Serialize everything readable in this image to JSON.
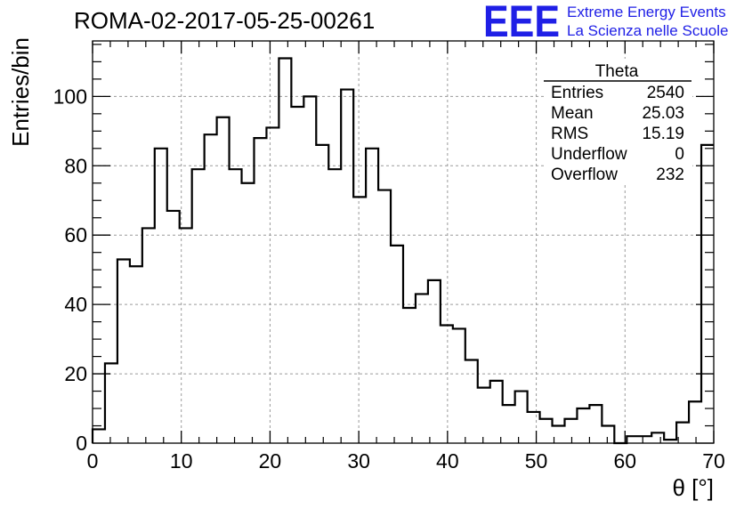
{
  "header": {
    "run_title": "ROMA-02-2017-05-25-00261",
    "logo_text": "EEE",
    "logo_line1": "Extreme Energy Events",
    "logo_line2": "La Scienza nelle Scuole",
    "logo_color": "#1f1fe6"
  },
  "stats": {
    "name": "Theta",
    "rows": [
      {
        "label": "Entries",
        "value": "2540"
      },
      {
        "label": "Mean",
        "value": "25.03"
      },
      {
        "label": "RMS",
        "value": "15.19"
      },
      {
        "label": "Underflow",
        "value": "0"
      },
      {
        "label": "Overflow",
        "value": "232"
      }
    ]
  },
  "chart_data": {
    "type": "bar",
    "style": "step-histogram",
    "xlabel": "θ [°]",
    "ylabel": "Entries/bin",
    "xlim": [
      0,
      70
    ],
    "ylim": [
      0,
      116
    ],
    "bin_width": 1.4,
    "bin_edges_start": 0,
    "x_ticks": [
      "0",
      "10",
      "20",
      "30",
      "40",
      "50",
      "60",
      "70"
    ],
    "y_ticks": [
      "0",
      "20",
      "40",
      "60",
      "80",
      "100"
    ],
    "grid": true,
    "values": [
      4,
      23,
      53,
      51,
      62,
      85,
      67,
      62,
      79,
      89,
      94,
      79,
      75,
      88,
      91,
      111,
      97,
      100,
      86,
      79,
      102,
      71,
      85,
      73,
      57,
      39,
      43,
      47,
      34,
      33,
      24,
      16,
      18,
      11,
      15,
      9,
      7,
      5,
      7,
      10,
      11,
      5,
      0,
      2,
      2,
      3,
      1,
      6,
      12,
      86
    ],
    "line_color": "#000000"
  }
}
